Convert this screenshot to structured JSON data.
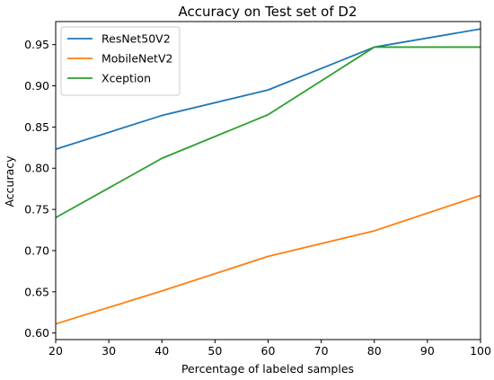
{
  "chart_data": {
    "type": "line",
    "title": "Accuracy on Test set of D2",
    "xlabel": "Percentage of labeled samples",
    "ylabel": "Accuracy",
    "x": [
      20,
      40,
      60,
      80,
      100
    ],
    "xlim": [
      20,
      100
    ],
    "ylim": [
      0.592,
      0.978
    ],
    "xticks": [
      "20",
      "30",
      "40",
      "50",
      "60",
      "70",
      "80",
      "90",
      "100"
    ],
    "yticks": [
      "0.60",
      "0.65",
      "0.70",
      "0.75",
      "0.80",
      "0.85",
      "0.90",
      "0.95"
    ],
    "grid": false,
    "legend": "top-left",
    "series": [
      {
        "name": "ResNet50V2",
        "color": "#1f77b4",
        "values": [
          0.823,
          0.864,
          0.895,
          0.947,
          0.969
        ]
      },
      {
        "name": "MobileNetV2",
        "color": "#ff7f0e",
        "values": [
          0.611,
          0.651,
          0.693,
          0.724,
          0.767
        ]
      },
      {
        "name": "Xception",
        "color": "#2ca02c",
        "values": [
          0.74,
          0.812,
          0.865,
          0.947,
          0.947
        ]
      }
    ]
  }
}
